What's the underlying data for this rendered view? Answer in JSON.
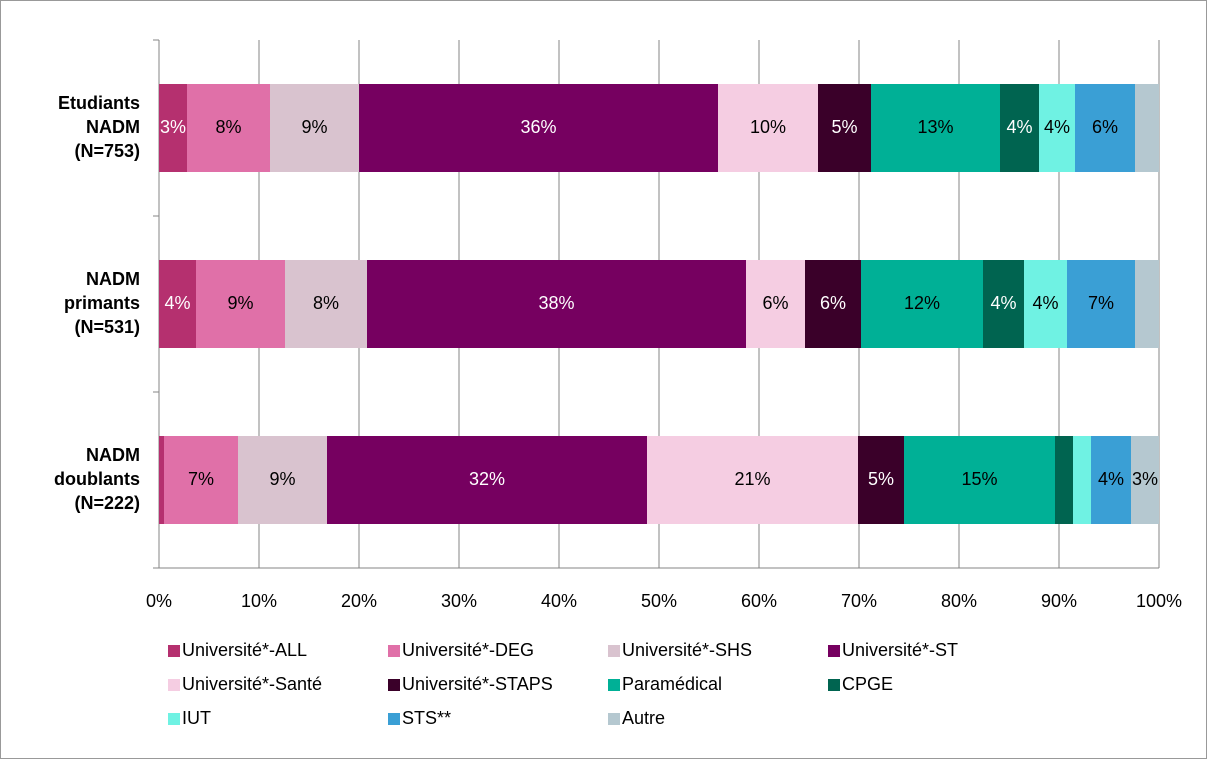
{
  "chart_data": {
    "type": "stacked_barh",
    "categories": [
      [
        "Etudiants",
        "NADM",
        "(N=753)"
      ],
      [
        "NADM",
        "primants",
        "(N=531)"
      ],
      [
        "NADM",
        "doublants",
        "(N=222)"
      ]
    ],
    "series": [
      {
        "name": "Université*-ALL",
        "color": "#b5306f",
        "label_color": "#ffffff",
        "values": [
          2.8,
          3.7,
          0.5
        ],
        "value_labels": [
          "3%",
          "4%",
          null
        ]
      },
      {
        "name": "Université*-DEG",
        "color": "#e070a8",
        "label_color": "#000000",
        "values": [
          8.3,
          8.9,
          7.4
        ],
        "value_labels": [
          "8%",
          "9%",
          "7%"
        ]
      },
      {
        "name": "Université*-SHS",
        "color": "#d9c3cf",
        "label_color": "#000000",
        "values": [
          8.9,
          8.2,
          8.9
        ],
        "value_labels": [
          "9%",
          "8%",
          "9%"
        ]
      },
      {
        "name": "Université*-ST",
        "color": "#760060",
        "label_color": "#ffffff",
        "values": [
          35.9,
          37.9,
          32.0
        ],
        "value_labels": [
          "36%",
          "38%",
          "32%"
        ]
      },
      {
        "name": "Université*-Santé",
        "color": "#f5cde2",
        "label_color": "#000000",
        "values": [
          10.0,
          5.9,
          21.1
        ],
        "value_labels": [
          "10%",
          "6%",
          "21%"
        ]
      },
      {
        "name": "Université*-STAPS",
        "color": "#3a0029",
        "label_color": "#ffffff",
        "values": [
          5.3,
          5.6,
          4.6
        ],
        "value_labels": [
          "5%",
          "6%",
          "5%"
        ]
      },
      {
        "name": "Paramédical",
        "color": "#00b096",
        "label_color": "#000000",
        "values": [
          12.9,
          12.2,
          15.1
        ],
        "value_labels": [
          "13%",
          "12%",
          "15%"
        ]
      },
      {
        "name": "CPGE",
        "color": "#006450",
        "label_color": "#ffffff",
        "values": [
          3.9,
          4.1,
          1.8
        ],
        "value_labels": [
          "4%",
          "4%",
          null
        ]
      },
      {
        "name": "IUT",
        "color": "#6ff2e3",
        "label_color": "#000000",
        "values": [
          3.6,
          4.3,
          1.8
        ],
        "value_labels": [
          "4%",
          "4%",
          null
        ]
      },
      {
        "name": "STS**",
        "color": "#3a9fd5",
        "label_color": "#000000",
        "values": [
          6.0,
          6.8,
          4.0
        ],
        "value_labels": [
          "6%",
          "7%",
          "4%"
        ]
      },
      {
        "name": "Autre",
        "color": "#b5c8d0",
        "label_color": "#000000",
        "values": [
          2.4,
          2.4,
          2.8
        ],
        "value_labels": [
          null,
          null,
          "3%"
        ]
      }
    ],
    "xlim": [
      0,
      100
    ],
    "xticks": [
      {
        "value": 0,
        "label": "0%"
      },
      {
        "value": 10,
        "label": "10%"
      },
      {
        "value": 20,
        "label": "20%"
      },
      {
        "value": 30,
        "label": "30%"
      },
      {
        "value": 40,
        "label": "40%"
      },
      {
        "value": 50,
        "label": "50%"
      },
      {
        "value": 60,
        "label": "60%"
      },
      {
        "value": 70,
        "label": "70%"
      },
      {
        "value": 80,
        "label": "80%"
      },
      {
        "value": 90,
        "label": "90%"
      },
      {
        "value": 100,
        "label": "100%"
      }
    ],
    "grid": true
  }
}
